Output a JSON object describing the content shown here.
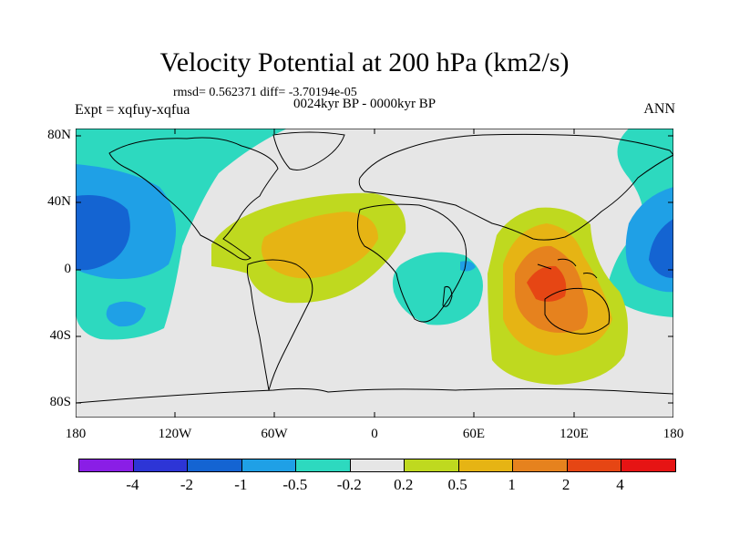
{
  "header": {
    "title": "Velocity Potential at 200 hPa (km2/s)",
    "stats": "rmsd= 0.562371 diff= -3.70194e-05",
    "expt": "Expt = xqfuy-xqfua",
    "period": "0024kyr BP - 0000kyr BP",
    "season": "ANN"
  },
  "axes": {
    "lat_ticks": [
      "80N",
      "40N",
      "0",
      "40S",
      "80S"
    ],
    "lon_ticks": [
      "180",
      "120W",
      "60W",
      "0",
      "60E",
      "120E",
      "180"
    ]
  },
  "colorbar": {
    "colors": [
      "#8a1ee6",
      "#2d35d6",
      "#1464d2",
      "#1fa0e6",
      "#2dd9bf",
      "#e6e6e6",
      "#bfd91f",
      "#e6b414",
      "#e6821e",
      "#e64614",
      "#e61414"
    ],
    "labels": [
      "-4",
      "-2",
      "-1",
      "-0.5",
      "-0.2",
      "0.2",
      "0.5",
      "1",
      "2",
      "4"
    ]
  },
  "map_style": {
    "ocean_bg": "#e6e6e6",
    "coast": "#000000"
  }
}
